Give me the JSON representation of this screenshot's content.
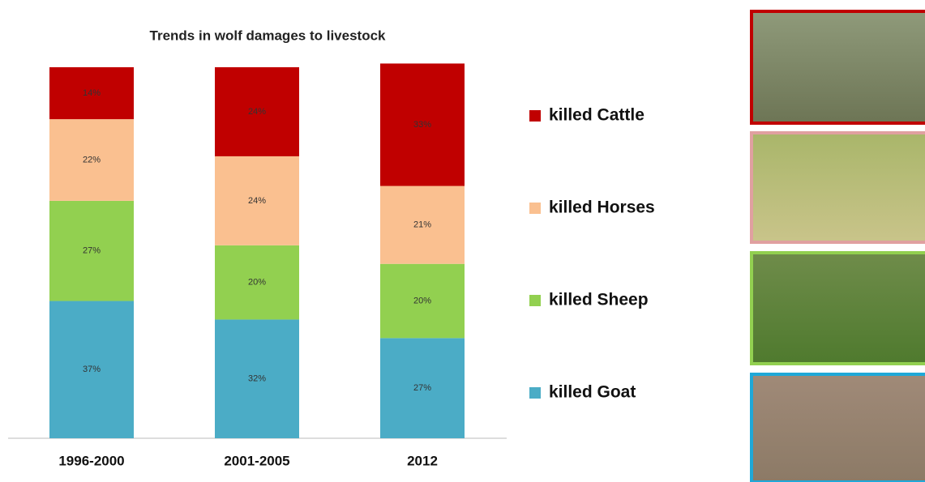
{
  "chart_data": {
    "type": "stacked_bar",
    "title": "Trends in wolf damages to livestock",
    "categories": [
      "1996-2000",
      "2001-2005",
      "2012"
    ],
    "series": [
      {
        "name": "killed Goat",
        "color": "#4bacc6",
        "values": [
          37,
          32,
          27
        ],
        "value_labels": [
          "37%",
          "32%",
          "27%"
        ]
      },
      {
        "name": "killed Sheep",
        "color": "#92d050",
        "values": [
          27,
          20,
          20
        ],
        "value_labels": [
          "27%",
          "20%",
          "20%"
        ]
      },
      {
        "name": "killed Horses",
        "color": "#fac090",
        "values": [
          22,
          24,
          21
        ],
        "value_labels": [
          "22%",
          "24%",
          "21%"
        ]
      },
      {
        "name": "killed Cattle",
        "color": "#c00000",
        "values": [
          14,
          24,
          33
        ],
        "value_labels": [
          "14%",
          "24%",
          "33%"
        ]
      }
    ],
    "legend": "right"
  }
}
